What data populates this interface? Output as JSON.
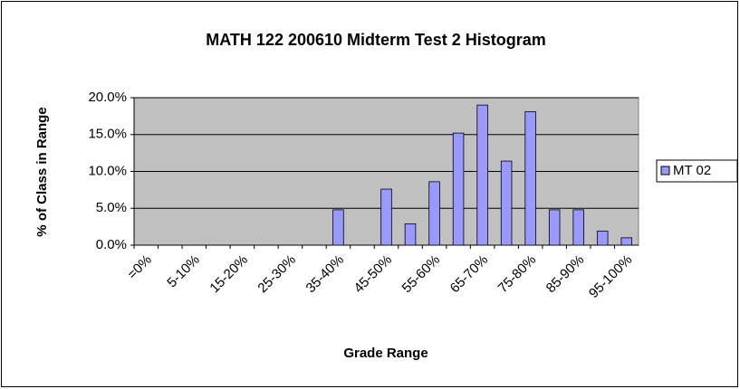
{
  "chart_data": {
    "type": "bar",
    "title": "MATH 122 200610 Midterm Test 2 Histogram",
    "x_label": "Grade Range",
    "y_label": "% of Class in Range",
    "categories": [
      "=0%",
      null,
      "5-10%",
      null,
      "15-20%",
      null,
      "25-30%",
      null,
      "35-40%",
      null,
      "45-50%",
      null,
      "55-60%",
      null,
      "65-70%",
      null,
      "75-80%",
      null,
      "85-90%",
      null,
      "95-100%"
    ],
    "series": [
      {
        "name": "MT 02",
        "color": "#9999ff",
        "values": [
          0,
          0,
          0,
          0,
          0,
          0,
          0,
          0,
          4.8,
          0,
          7.6,
          2.9,
          8.6,
          15.2,
          19.0,
          11.4,
          18.1,
          4.8,
          4.8,
          1.9,
          1.0
        ]
      }
    ],
    "ylim": [
      0,
      20
    ],
    "yticks": [
      {
        "value": 0,
        "label": "0.0%"
      },
      {
        "value": 5,
        "label": "5.0%"
      },
      {
        "value": 10,
        "label": "10.0%"
      },
      {
        "value": 15,
        "label": "15.0%"
      },
      {
        "value": 20,
        "label": "20.0%"
      }
    ],
    "grid": true,
    "legend": "right"
  }
}
